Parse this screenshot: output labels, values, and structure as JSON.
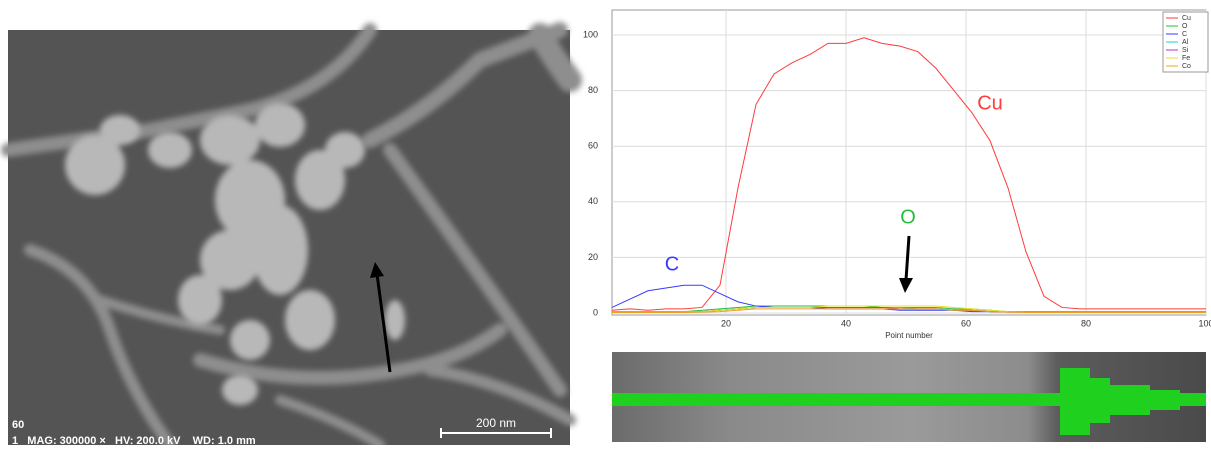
{
  "chart_data": {
    "type": "line",
    "xlabel": "Point number",
    "x": [
      1,
      4,
      7,
      10,
      13,
      16,
      19,
      22,
      25,
      28,
      31,
      34,
      37,
      40,
      43,
      46,
      49,
      52,
      55,
      58,
      61,
      64,
      67,
      70,
      73,
      76,
      79,
      82,
      85,
      88,
      91,
      94,
      97,
      100
    ],
    "series": [
      {
        "name": "Cu",
        "color": "#ff3b3b",
        "values": [
          1,
          1.5,
          1,
          1.5,
          1.5,
          2,
          10,
          45,
          75,
          86,
          90,
          93,
          97,
          97,
          99,
          97,
          96,
          94,
          88,
          80,
          72,
          62,
          45,
          22,
          6,
          2,
          1.5,
          1.5,
          1.5,
          1.5,
          1.5,
          1.5,
          1.5,
          1.5
        ]
      },
      {
        "name": "O",
        "color": "#22c03a",
        "values": [
          0.5,
          0.5,
          0.5,
          0.5,
          0.5,
          1,
          1.5,
          2,
          2.5,
          2.5,
          2.5,
          2.5,
          2.5,
          2.5,
          2.5,
          2,
          2,
          2,
          2,
          1.5,
          1.5,
          1,
          0.5,
          0.5,
          0.5,
          0.5,
          0.5,
          0.5,
          0.5,
          0.5,
          0.5,
          0.5,
          0.5,
          0.5
        ]
      },
      {
        "name": "C",
        "color": "#3a3aff",
        "values": [
          2,
          5,
          8,
          9,
          10,
          10,
          7,
          4,
          2.5,
          2,
          2,
          2,
          1.5,
          1.5,
          1.5,
          1.5,
          1,
          1,
          1,
          1,
          0.5,
          0.5,
          0.5,
          0.5,
          0.5,
          0.5,
          0.5,
          0.5,
          0.5,
          0.5,
          0.5,
          0.5,
          0.5,
          0.5
        ]
      },
      {
        "name": "Al",
        "color": "#22cccc",
        "values": [
          0.5,
          0.5,
          0.5,
          0.5,
          0.5,
          0.5,
          1,
          1.5,
          2,
          2,
          2,
          2,
          2,
          2,
          2,
          2,
          2,
          1.5,
          1.5,
          1,
          1,
          0.5,
          0.5,
          0.5,
          0.5,
          0.5,
          0.5,
          0.5,
          0.5,
          0.5,
          0.5,
          0.5,
          0.5,
          0.5
        ]
      },
      {
        "name": "Si",
        "color": "#c030c0",
        "values": [
          0.3,
          0.3,
          0.3,
          0.3,
          0.3,
          0.5,
          1,
          1.5,
          2,
          2,
          2,
          2,
          2,
          2,
          2,
          2,
          1.5,
          1.5,
          1.5,
          1,
          1,
          0.5,
          0.3,
          0.3,
          0.3,
          0.3,
          0.3,
          0.3,
          0.3,
          0.3,
          0.3,
          0.3,
          0.3,
          0.3
        ]
      },
      {
        "name": "Fe",
        "color": "#e8e020",
        "values": [
          0.3,
          0.3,
          0.3,
          0.3,
          0.3,
          0.5,
          1,
          1.5,
          2,
          2,
          2,
          2,
          2.5,
          2.5,
          2.5,
          2.5,
          2.5,
          2.5,
          2.5,
          2,
          1.5,
          1,
          0.5,
          0.3,
          0.3,
          0.3,
          0.3,
          0.3,
          0.3,
          0.3,
          0.3,
          0.3,
          0.3,
          0.3
        ]
      },
      {
        "name": "Co",
        "color": "#f0a020",
        "values": [
          0.2,
          0.2,
          0.2,
          0.2,
          0.2,
          0.3,
          0.5,
          1,
          1.5,
          1.5,
          1.5,
          1.5,
          1.5,
          1.5,
          1.5,
          1.5,
          1.5,
          1.5,
          1.5,
          1,
          1,
          0.5,
          0.3,
          0.2,
          0.2,
          0.2,
          0.2,
          0.2,
          0.2,
          0.2,
          0.2,
          0.2,
          0.2,
          0.2
        ]
      }
    ],
    "xlim": [
      1,
      100
    ],
    "xticks": [
      20,
      40,
      60,
      80,
      100
    ],
    "ylim": [
      0,
      109
    ],
    "yticks": [
      0,
      20,
      40,
      60,
      80,
      100
    ],
    "grid": true,
    "legend": "top-right",
    "annotations": [
      "Cu",
      "C",
      "O"
    ]
  },
  "image": {
    "frame_label": "60",
    "info": "1   MAG: 300000 ×   HV: 200.0 kV    WD: 1.0 mm",
    "scale_bar": "200 nm"
  }
}
